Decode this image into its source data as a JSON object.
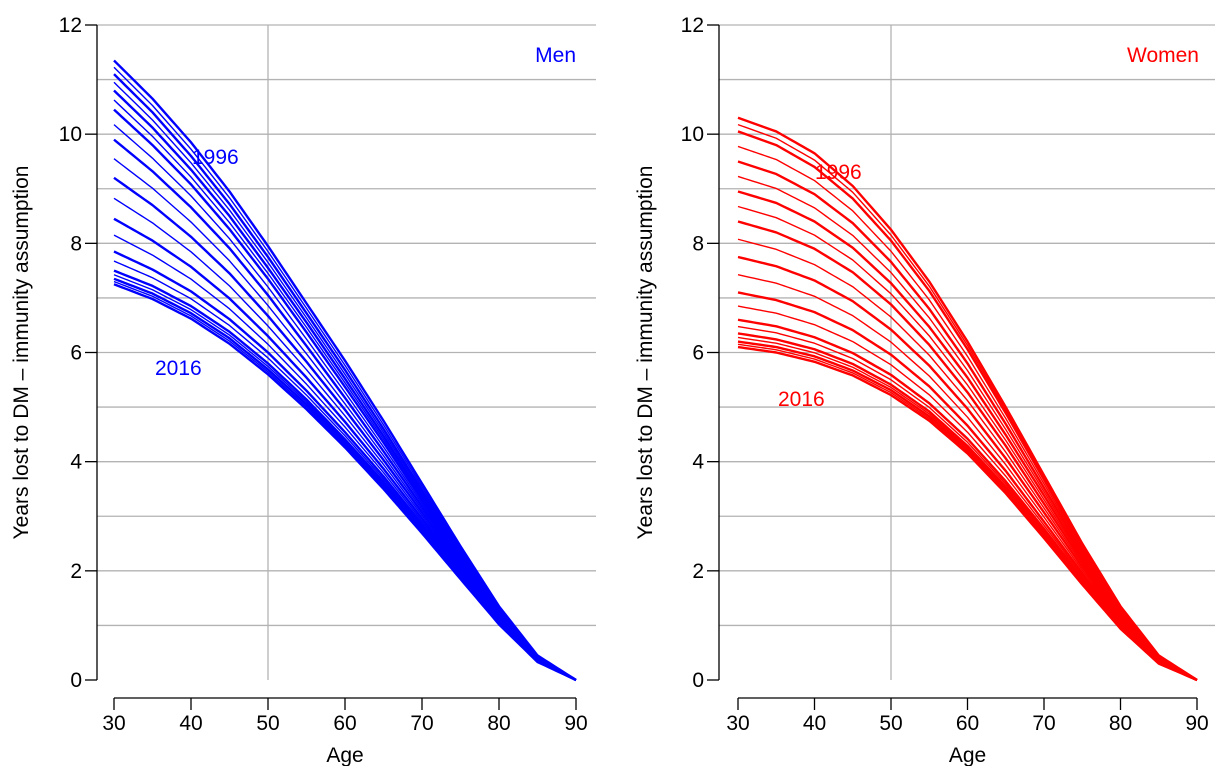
{
  "chart_data": [
    {
      "type": "line",
      "panel_label": "Men",
      "xlabel": "Age",
      "ylabel": "Years lost to DM – immunity assumption",
      "xlim": [
        30,
        90
      ],
      "ylim": [
        0,
        12
      ],
      "xticks": [
        "30",
        "40",
        "50",
        "60",
        "70",
        "80",
        "90"
      ],
      "yticks": [
        "0",
        "2",
        "4",
        "6",
        "8",
        "10",
        "12"
      ],
      "grid": true,
      "color": "#0000ff",
      "x": [
        30,
        35,
        40,
        45,
        50,
        55,
        60,
        65,
        70,
        75,
        80,
        85,
        90
      ],
      "series_start_year": "1996",
      "series_end_year": "2016",
      "series": [
        {
          "values": [
            11.35,
            10.65,
            9.85,
            8.95,
            7.95,
            6.9,
            5.85,
            4.75,
            3.6,
            2.45,
            1.35,
            0.45,
            0
          ]
        },
        {
          "values": [
            11.1,
            10.4,
            9.6,
            8.72,
            7.75,
            6.72,
            5.68,
            4.6,
            3.48,
            2.37,
            1.3,
            0.43,
            0
          ]
        },
        {
          "values": [
            10.8,
            10.12,
            9.35,
            8.5,
            7.55,
            6.55,
            5.52,
            4.47,
            3.38,
            2.3,
            1.26,
            0.42,
            0
          ]
        },
        {
          "values": [
            10.45,
            9.8,
            9.08,
            8.26,
            7.35,
            6.37,
            5.37,
            4.35,
            3.29,
            2.24,
            1.23,
            0.41,
            0
          ]
        },
        {
          "values": [
            9.9,
            9.32,
            8.66,
            7.91,
            7.05,
            6.12,
            5.17,
            4.19,
            3.18,
            2.17,
            1.19,
            0.39,
            0
          ]
        },
        {
          "values": [
            9.2,
            8.7,
            8.12,
            7.45,
            6.67,
            5.83,
            4.95,
            4.03,
            3.07,
            2.1,
            1.16,
            0.38,
            0
          ]
        },
        {
          "values": [
            8.45,
            8.05,
            7.57,
            6.99,
            6.3,
            5.54,
            4.73,
            3.87,
            2.96,
            2.03,
            1.12,
            0.37,
            0
          ]
        },
        {
          "values": [
            7.85,
            7.52,
            7.12,
            6.61,
            6.0,
            5.3,
            4.54,
            3.73,
            2.86,
            1.97,
            1.09,
            0.36,
            0
          ]
        },
        {
          "values": [
            7.5,
            7.22,
            6.85,
            6.38,
            5.8,
            5.14,
            4.41,
            3.63,
            2.79,
            1.92,
            1.06,
            0.35,
            0
          ]
        },
        {
          "values": [
            7.35,
            7.08,
            6.72,
            6.26,
            5.69,
            5.05,
            4.34,
            3.57,
            2.74,
            1.89,
            1.04,
            0.34,
            0
          ]
        },
        {
          "values": [
            7.25,
            6.98,
            6.62,
            6.16,
            5.6,
            4.96,
            4.26,
            3.5,
            2.69,
            1.85,
            1.02,
            0.33,
            0
          ]
        }
      ]
    },
    {
      "type": "line",
      "panel_label": "Women",
      "xlabel": "Age",
      "ylabel": "Years lost to DM – immunity assumption",
      "xlim": [
        30,
        90
      ],
      "ylim": [
        0,
        12
      ],
      "xticks": [
        "30",
        "40",
        "50",
        "60",
        "70",
        "80",
        "90"
      ],
      "yticks": [
        "0",
        "2",
        "4",
        "6",
        "8",
        "10",
        "12"
      ],
      "grid": true,
      "color": "#ff0000",
      "x": [
        30,
        35,
        40,
        45,
        50,
        55,
        60,
        65,
        70,
        75,
        80,
        85,
        90
      ],
      "series_start_year": "1996",
      "series_end_year": "2016",
      "series": [
        {
          "values": [
            10.3,
            10.05,
            9.65,
            9.05,
            8.25,
            7.3,
            6.2,
            5.0,
            3.75,
            2.5,
            1.35,
            0.45,
            0
          ]
        },
        {
          "values": [
            10.05,
            9.8,
            9.4,
            8.82,
            8.05,
            7.13,
            6.06,
            4.89,
            3.67,
            2.44,
            1.32,
            0.44,
            0
          ]
        },
        {
          "values": [
            9.5,
            9.27,
            8.9,
            8.37,
            7.66,
            6.8,
            5.8,
            4.69,
            3.52,
            2.35,
            1.27,
            0.42,
            0
          ]
        },
        {
          "values": [
            8.95,
            8.74,
            8.4,
            7.92,
            7.27,
            6.47,
            5.54,
            4.49,
            3.38,
            2.26,
            1.22,
            0.41,
            0
          ]
        },
        {
          "values": [
            8.4,
            8.2,
            7.9,
            7.47,
            6.88,
            6.14,
            5.27,
            4.29,
            3.23,
            2.17,
            1.17,
            0.39,
            0
          ]
        },
        {
          "values": [
            7.75,
            7.58,
            7.32,
            6.94,
            6.42,
            5.76,
            4.97,
            4.06,
            3.07,
            2.07,
            1.12,
            0.37,
            0
          ]
        },
        {
          "values": [
            7.1,
            6.96,
            6.74,
            6.41,
            5.96,
            5.38,
            4.66,
            3.83,
            2.9,
            1.96,
            1.06,
            0.35,
            0
          ]
        },
        {
          "values": [
            6.6,
            6.48,
            6.28,
            5.99,
            5.59,
            5.07,
            4.42,
            3.64,
            2.77,
            1.87,
            1.01,
            0.33,
            0
          ]
        },
        {
          "values": [
            6.35,
            6.24,
            6.06,
            5.79,
            5.41,
            4.92,
            4.29,
            3.54,
            2.7,
            1.82,
            0.98,
            0.32,
            0
          ]
        },
        {
          "values": [
            6.2,
            6.1,
            5.93,
            5.67,
            5.31,
            4.83,
            4.22,
            3.48,
            2.65,
            1.79,
            0.96,
            0.31,
            0
          ]
        },
        {
          "values": [
            6.1,
            6.0,
            5.83,
            5.58,
            5.22,
            4.75,
            4.15,
            3.42,
            2.6,
            1.75,
            0.94,
            0.3,
            0
          ]
        }
      ]
    }
  ]
}
